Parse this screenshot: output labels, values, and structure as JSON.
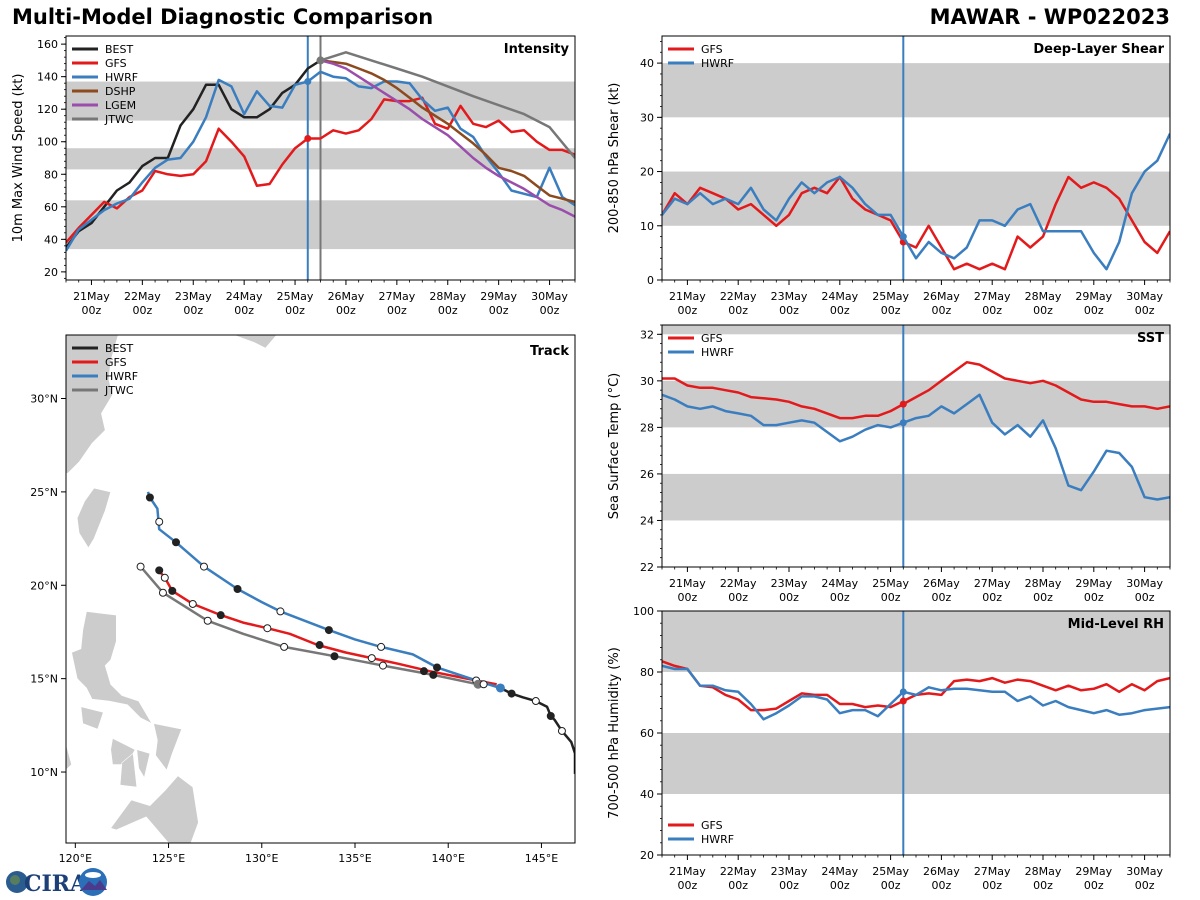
{
  "header": {
    "title": "Multi-Model Diagnostic Comparison",
    "storm": "MAWAR - WP022023"
  },
  "logo": {
    "text": "CIRA"
  },
  "colors": {
    "BEST": "#222222",
    "GFS": "#e31a1c",
    "HWRF": "#3a7ebf",
    "DSHP": "#8c4a1e",
    "LGEM": "#9b4dab",
    "JTWC": "#777777",
    "band": "#cccccc"
  },
  "time_axis": {
    "start": "20May 12z",
    "step_hours": 6,
    "tick_labels": [
      "21May\n00z",
      "22May\n00z",
      "23May\n00z",
      "24May\n00z",
      "25May\n00z",
      "26May\n00z",
      "27May\n00z",
      "28May\n00z",
      "29May\n00z",
      "30May\n00z"
    ],
    "init_time_index": 19,
    "jtwc_time_index": 20
  },
  "chart_data": [
    {
      "id": "intensity",
      "type": "line",
      "title": "Intensity",
      "ylabel": "10m Max Wind Speed (kt)",
      "ylim": [
        15,
        165
      ],
      "yticks": [
        20,
        40,
        60,
        80,
        100,
        120,
        140,
        160
      ],
      "bands": [
        [
          34,
          64
        ],
        [
          83,
          96
        ],
        [
          113,
          137
        ]
      ],
      "legend": "top-left",
      "series": [
        {
          "name": "BEST",
          "start": 0,
          "values": [
            35,
            45,
            50,
            60,
            70,
            75,
            85,
            90,
            90,
            110,
            120,
            135,
            135,
            120,
            115,
            115,
            120,
            130,
            135,
            145,
            150
          ]
        },
        {
          "name": "GFS",
          "start": 0,
          "values": [
            38,
            47,
            55,
            63,
            59,
            66,
            70,
            82,
            80,
            79,
            80,
            88,
            108,
            100,
            91,
            73,
            74,
            86,
            96,
            102,
            102,
            107,
            105,
            107,
            114,
            126,
            125,
            125,
            127,
            111,
            108,
            122,
            111,
            109,
            113,
            106,
            107,
            100,
            95,
            95,
            92
          ]
        },
        {
          "name": "HWRF",
          "start": 0,
          "values": [
            33,
            46,
            52,
            58,
            62,
            65,
            75,
            84,
            89,
            90,
            100,
            115,
            138,
            134,
            117,
            131,
            122,
            121,
            135,
            137,
            143,
            140,
            139,
            134,
            133,
            137,
            137,
            136,
            126,
            119,
            121,
            108,
            103,
            91,
            81,
            70,
            68,
            66,
            84,
            66,
            61,
            62
          ]
        },
        {
          "name": "DSHP",
          "start": 20,
          "values": [
            150,
            149,
            148,
            145,
            142,
            138,
            133,
            127,
            121,
            116,
            111,
            105,
            99,
            92,
            84,
            82,
            79,
            73,
            67,
            65,
            63
          ]
        },
        {
          "name": "LGEM",
          "start": 20,
          "values": [
            150,
            148,
            145,
            140,
            135,
            130,
            125,
            120,
            114,
            109,
            104,
            97,
            90,
            84,
            79,
            75,
            71,
            66,
            61,
            58,
            54
          ]
        },
        {
          "name": "JTWC",
          "start": 20,
          "values": [
            150,
            155,
            145,
            140,
            128,
            117,
            109,
            90
          ],
          "times": [
            20,
            22,
            26,
            28,
            32,
            36,
            38,
            40
          ]
        }
      ]
    },
    {
      "id": "shear",
      "type": "line",
      "title": "Deep-Layer Shear",
      "ylabel": "200-850 hPa Shear (kt)",
      "ylim": [
        0,
        45
      ],
      "yticks": [
        0,
        10,
        20,
        30,
        40
      ],
      "bands": [
        [
          10,
          20
        ],
        [
          30,
          40
        ]
      ],
      "legend": "top-left",
      "series": [
        {
          "name": "GFS",
          "start": 0,
          "values": [
            12,
            16,
            14,
            17,
            16,
            15,
            13,
            14,
            12,
            10,
            12,
            16,
            17,
            16,
            19,
            15,
            13,
            12,
            11,
            7,
            6,
            10,
            6,
            2,
            3,
            2,
            3,
            2,
            8,
            6,
            8,
            14,
            19,
            17,
            18,
            17,
            15,
            11,
            7,
            5,
            9
          ]
        },
        {
          "name": "HWRF",
          "start": 0,
          "values": [
            12,
            15,
            14,
            16,
            14,
            15,
            14,
            17,
            13,
            11,
            15,
            18,
            16,
            18,
            19,
            17,
            14,
            12,
            12,
            8,
            4,
            7,
            5,
            4,
            6,
            11,
            11,
            10,
            13,
            14,
            9,
            9,
            9,
            9,
            5,
            2,
            7,
            16,
            20,
            22,
            27
          ]
        }
      ]
    },
    {
      "id": "sst",
      "type": "line",
      "title": "SST",
      "ylabel": "Sea Surface Temp (°C)",
      "ylim": [
        22,
        32.4
      ],
      "yticks": [
        22,
        24,
        26,
        28,
        30,
        32
      ],
      "bands": [
        [
          24,
          26
        ],
        [
          28,
          30
        ],
        [
          32,
          33
        ]
      ],
      "legend": "top-left",
      "series": [
        {
          "name": "GFS",
          "start": 0,
          "values": [
            30.1,
            30.1,
            29.8,
            29.7,
            29.7,
            29.6,
            29.5,
            29.3,
            29.25,
            29.2,
            29.1,
            28.9,
            28.8,
            28.6,
            28.4,
            28.4,
            28.5,
            28.5,
            28.7,
            29.0,
            29.3,
            29.6,
            30.0,
            30.4,
            30.8,
            30.7,
            30.4,
            30.1,
            30.0,
            29.9,
            30.0,
            29.8,
            29.5,
            29.2,
            29.1,
            29.1,
            29.0,
            28.9,
            28.9,
            28.8,
            28.9
          ]
        },
        {
          "name": "HWRF",
          "start": 0,
          "values": [
            29.4,
            29.2,
            28.9,
            28.8,
            28.9,
            28.7,
            28.6,
            28.5,
            28.1,
            28.1,
            28.2,
            28.3,
            28.2,
            27.8,
            27.4,
            27.6,
            27.9,
            28.1,
            28.0,
            28.2,
            28.4,
            28.5,
            28.9,
            28.6,
            29.0,
            29.4,
            28.2,
            27.7,
            28.1,
            27.6,
            28.3,
            27.1,
            25.5,
            25.3,
            26.1,
            27.0,
            26.9,
            26.3,
            25.0,
            24.9,
            25.0
          ]
        }
      ]
    },
    {
      "id": "rh",
      "type": "line",
      "title": "Mid-Level RH",
      "ylabel": "700-500 hPa Humidity (%)",
      "ylim": [
        20,
        100
      ],
      "yticks": [
        20,
        40,
        60,
        80,
        100
      ],
      "bands": [
        [
          40,
          60
        ],
        [
          80,
          100
        ]
      ],
      "legend": "bottom-left",
      "series": [
        {
          "name": "GFS",
          "start": 0,
          "values": [
            83.5,
            82,
            81,
            75.5,
            75,
            72.5,
            71,
            67.5,
            67.5,
            68,
            70.5,
            73,
            72.5,
            72.5,
            69.5,
            69.5,
            68.5,
            69,
            68.5,
            70.5,
            72.5,
            73,
            72.5,
            77,
            77.5,
            77,
            78,
            76.5,
            77.5,
            77,
            75.5,
            74,
            75.5,
            74,
            74.5,
            76,
            73.5,
            76,
            74,
            77,
            78
          ]
        },
        {
          "name": "HWRF",
          "start": 0,
          "values": [
            82,
            81,
            81,
            75.5,
            75.5,
            74,
            73.5,
            69.5,
            64.5,
            66.5,
            69,
            72,
            72,
            71,
            66.5,
            67.5,
            67.5,
            65.5,
            69.5,
            73.5,
            72.5,
            75,
            74,
            74.5,
            74.5,
            74,
            73.5,
            73.5,
            70.5,
            72,
            69,
            70.5,
            68.5,
            67.5,
            66.5,
            67.5,
            66,
            66.5,
            67.5,
            68,
            68.5
          ]
        }
      ]
    },
    {
      "id": "track",
      "type": "line",
      "title": "Track",
      "xlabel": "",
      "ylabel": "",
      "xlim": [
        119.5,
        146.8
      ],
      "ylim": [
        6.2,
        33.4
      ],
      "xticks": [
        120,
        125,
        130,
        135,
        140,
        145
      ],
      "xtick_labels": [
        "120°E",
        "125°E",
        "130°E",
        "135°E",
        "140°E",
        "145°E"
      ],
      "yticks": [
        10,
        15,
        20,
        25,
        30
      ],
      "ytick_labels": [
        "10°N",
        "15°N",
        "20°N",
        "25°N",
        "30°N"
      ],
      "legend": "top-left",
      "series": [
        {
          "name": "BEST",
          "points": [
            [
              146.8,
              9.9
            ],
            [
              146.8,
              11.0
            ],
            [
              146.6,
              11.6
            ],
            [
              146.1,
              12.2
            ],
            [
              145.7,
              12.8
            ],
            [
              145.5,
              13.0
            ],
            [
              145.3,
              13.5
            ],
            [
              144.7,
              13.8
            ],
            [
              144.0,
              14.0
            ],
            [
              143.4,
              14.2
            ],
            [
              142.8,
              14.5
            ]
          ],
          "markers": [
            [
              145.5,
              13.0,
              "filled"
            ],
            [
              146.1,
              12.2,
              "open"
            ],
            [
              144.7,
              13.8,
              "open"
            ],
            [
              143.4,
              14.2,
              "filled"
            ]
          ]
        },
        {
          "name": "GFS",
          "points": [
            [
              142.6,
              14.7
            ],
            [
              141.0,
              15.0
            ],
            [
              139.0,
              15.4
            ],
            [
              137.3,
              15.8
            ],
            [
              135.9,
              16.1
            ],
            [
              134.5,
              16.4
            ],
            [
              133.0,
              16.8
            ],
            [
              131.5,
              17.4
            ],
            [
              130.3,
              17.7
            ],
            [
              129.0,
              18.0
            ],
            [
              127.8,
              18.4
            ],
            [
              126.3,
              19.0
            ],
            [
              125.2,
              19.7
            ],
            [
              124.8,
              20.4
            ],
            [
              124.4,
              20.9
            ]
          ],
          "markers": [
            [
              138.7,
              15.4,
              "filled"
            ],
            [
              135.9,
              16.1,
              "open"
            ],
            [
              133.1,
              16.8,
              "filled"
            ],
            [
              130.3,
              17.7,
              "open"
            ],
            [
              127.8,
              18.4,
              "filled"
            ],
            [
              126.3,
              19.0,
              "open"
            ],
            [
              125.2,
              19.7,
              "filled"
            ],
            [
              124.8,
              20.4,
              "open"
            ],
            [
              124.5,
              20.8,
              "filled"
            ]
          ]
        },
        {
          "name": "HWRF",
          "points": [
            [
              142.8,
              14.5
            ],
            [
              141.5,
              14.9
            ],
            [
              139.4,
              15.6
            ],
            [
              138.1,
              16.3
            ],
            [
              136.4,
              16.7
            ],
            [
              135.0,
              17.1
            ],
            [
              133.6,
              17.6
            ],
            [
              131.0,
              18.6
            ],
            [
              130.0,
              19.1
            ],
            [
              128.7,
              19.8
            ],
            [
              126.9,
              21.0
            ],
            [
              125.4,
              22.3
            ],
            [
              124.5,
              23.0
            ],
            [
              124.4,
              24.1
            ],
            [
              124.0,
              24.7
            ],
            [
              123.9,
              25.0
            ]
          ],
          "markers": [
            [
              142.8,
              14.5,
              "init"
            ],
            [
              141.5,
              14.9,
              "open"
            ],
            [
              139.4,
              15.6,
              "filled"
            ],
            [
              136.4,
              16.7,
              "open"
            ],
            [
              133.6,
              17.6,
              "filled"
            ],
            [
              131.0,
              18.6,
              "open"
            ],
            [
              128.7,
              19.8,
              "filled"
            ],
            [
              126.9,
              21.0,
              "open"
            ],
            [
              125.4,
              22.3,
              "filled"
            ],
            [
              124.5,
              23.4,
              "open"
            ],
            [
              124.0,
              24.7,
              "filled"
            ]
          ]
        },
        {
          "name": "JTWC",
          "points": [
            [
              141.6,
              14.7
            ],
            [
              139.2,
              15.2
            ],
            [
              136.5,
              15.7
            ],
            [
              133.9,
              16.2
            ],
            [
              131.2,
              16.7
            ],
            [
              129.0,
              17.4
            ],
            [
              127.1,
              18.1
            ],
            [
              124.7,
              19.6
            ],
            [
              123.5,
              21.0
            ]
          ],
          "markers": [
            [
              141.6,
              14.7,
              "gray"
            ],
            [
              141.9,
              14.7,
              "open"
            ],
            [
              139.2,
              15.2,
              "filled"
            ],
            [
              136.5,
              15.7,
              "open"
            ],
            [
              133.9,
              16.2,
              "filled"
            ],
            [
              131.2,
              16.7,
              "open"
            ],
            [
              127.1,
              18.1,
              "open"
            ],
            [
              124.7,
              19.6,
              "open"
            ],
            [
              123.5,
              21.0,
              "open"
            ]
          ]
        }
      ]
    }
  ]
}
